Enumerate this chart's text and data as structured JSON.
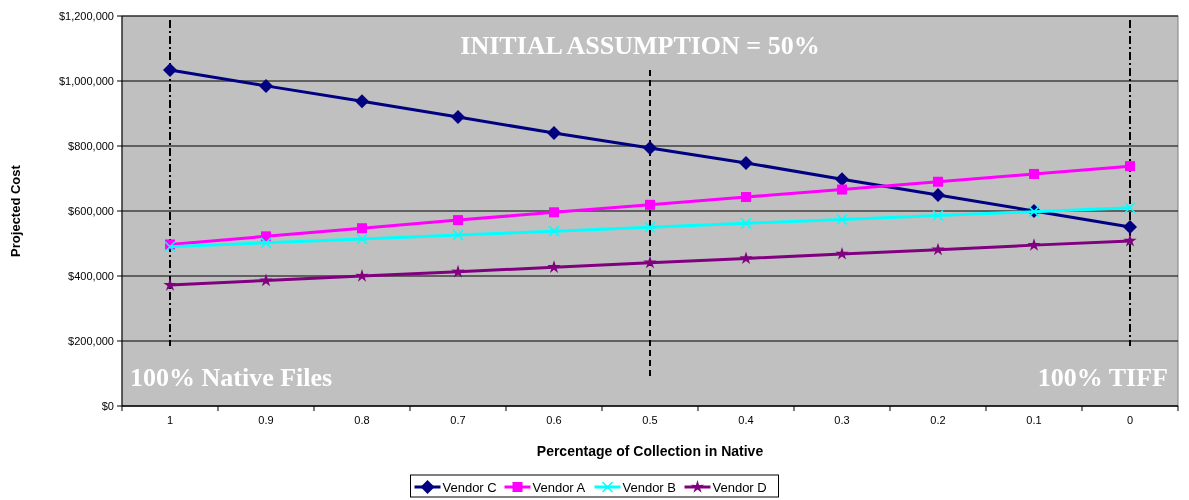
{
  "chart_data": {
    "type": "line",
    "xlabel": "Percentage of Collection in Native",
    "ylabel": "Projected Cost",
    "categories": [
      "1",
      "0.9",
      "0.8",
      "0.7",
      "0.6",
      "0.5",
      "0.4",
      "0.3",
      "0.2",
      "0.1",
      "0"
    ],
    "series": [
      {
        "name": "Vendor C",
        "color": "#000080",
        "marker": "diamond",
        "values": [
          1034000,
          985000,
          938000,
          889000,
          840000,
          794000,
          748000,
          698000,
          649000,
          600000,
          551000
        ]
      },
      {
        "name": "Vendor A",
        "color": "#ff00ff",
        "marker": "square",
        "values": [
          497000,
          522000,
          547000,
          572000,
          596000,
          619000,
          643000,
          666000,
          690000,
          714000,
          738000
        ]
      },
      {
        "name": "Vendor B",
        "color": "#00ffff",
        "marker": "cross",
        "values": [
          490000,
          502000,
          514000,
          526000,
          538000,
          550000,
          562000,
          574000,
          586000,
          598000,
          610000
        ]
      },
      {
        "name": "Vendor D",
        "color": "#800080",
        "marker": "star",
        "values": [
          372000,
          386000,
          400000,
          413000,
          427000,
          441000,
          454000,
          468000,
          481000,
          495000,
          508000
        ]
      }
    ],
    "ylim": [
      0,
      1200000
    ],
    "yticks": [
      {
        "value": 0,
        "label": "$0"
      },
      {
        "value": 200000,
        "label": "$200,000"
      },
      {
        "value": 400000,
        "label": "$400,000"
      },
      {
        "value": 600000,
        "label": "$600,000"
      },
      {
        "value": 800000,
        "label": "$800,000"
      },
      {
        "value": 1000000,
        "label": "$1,000,000"
      },
      {
        "value": 1200000,
        "label": "$1,200,000"
      }
    ],
    "grid": "y",
    "legend": "bottom",
    "line_style": "solid",
    "ref_lines": [
      {
        "axis": "x",
        "value": "1",
        "label": "100% Native Files",
        "color": "#000000",
        "line_style": "dotted"
      },
      {
        "axis": "x",
        "value": "0.5",
        "label": "INITIAL ASSUMPTION = 50%",
        "color": "#000000",
        "line_style": "dashed"
      },
      {
        "axis": "x",
        "value": "0",
        "label": "100% TIFF",
        "color": "#000000",
        "line_style": "dotted"
      }
    ]
  }
}
